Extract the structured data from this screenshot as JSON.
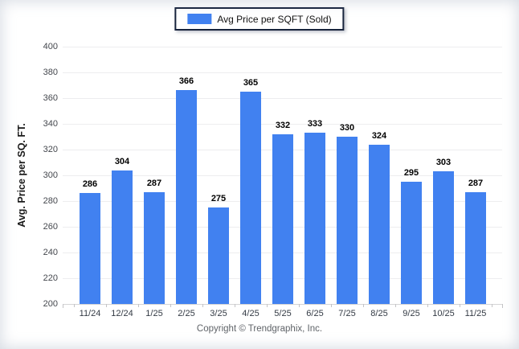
{
  "legend": {
    "label": "Avg Price per SQFT (Sold)"
  },
  "footer": {
    "copyright": "Copyright © Trendgraphix, Inc."
  },
  "chart_data": {
    "type": "bar",
    "title": "Avg Price per SQFT (Sold)",
    "categories": [
      "11/24",
      "12/24",
      "1/25",
      "2/25",
      "3/25",
      "4/25",
      "5/25",
      "6/25",
      "7/25",
      "8/25",
      "9/25",
      "10/25",
      "11/25"
    ],
    "values": [
      286,
      304,
      287,
      366,
      275,
      365,
      332,
      333,
      330,
      324,
      295,
      303,
      287
    ],
    "xlabel": "",
    "ylabel": "Avg. Price per SQ. FT.",
    "ylim": [
      200,
      400
    ],
    "ytick_step": 20,
    "grid": true,
    "legend_position": "top-center",
    "bar_color": "#4181f0",
    "value_labels": true
  }
}
